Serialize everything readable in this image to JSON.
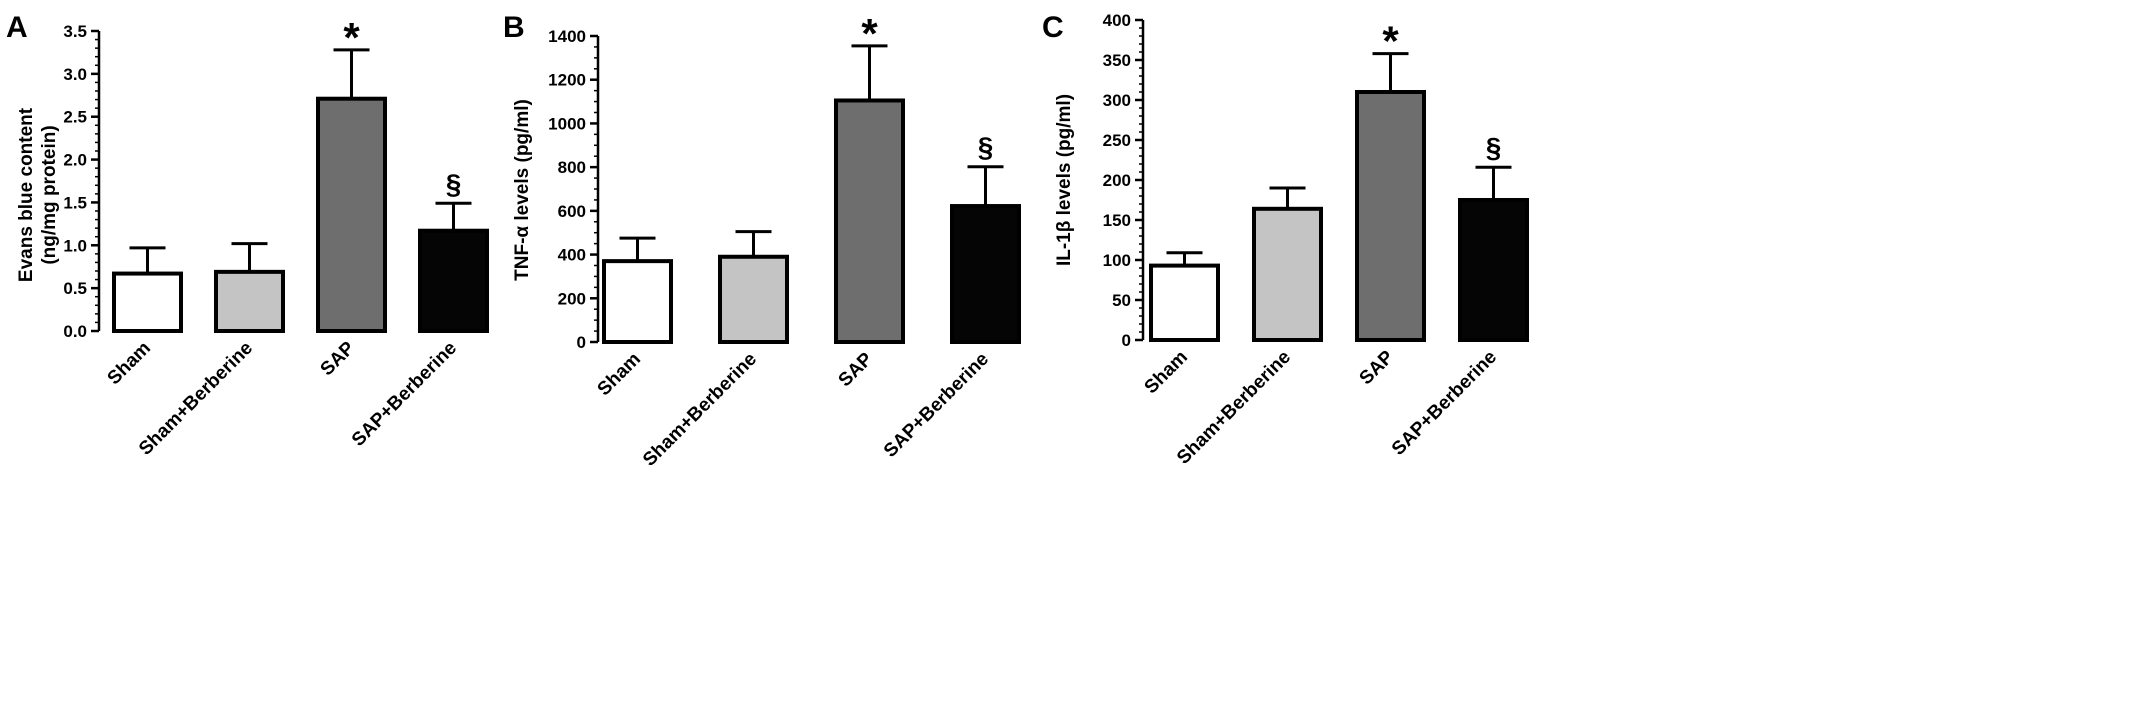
{
  "colors": {
    "Sham": "#ffffff",
    "Sham+Berberine": "#c4c4c4",
    "SAP": "#6e6e6e",
    "SAP+Berberine": "#050505",
    "outline": "#000000"
  },
  "chart_data": [
    {
      "type": "bar",
      "panel": "A",
      "categories": [
        "Sham",
        "Sham+Berberine",
        "SAP",
        "SAP+Berberine"
      ],
      "values": [
        0.67,
        0.69,
        2.71,
        1.17
      ],
      "error": [
        0.3,
        0.33,
        0.57,
        0.32
      ],
      "annotations": [
        "",
        "",
        "*",
        "§"
      ],
      "ylabel": [
        "Evans blue content",
        "(ng/mg protein)"
      ],
      "ylim": [
        0,
        3.5
      ],
      "yticks": [
        "0.0",
        "0.5",
        "1.0",
        "1.5",
        "2.0",
        "2.5",
        "3.0",
        "3.5"
      ],
      "grid": false
    },
    {
      "type": "bar",
      "panel": "B",
      "categories": [
        "Sham",
        "Sham+Berberine",
        "SAP",
        "SAP+Berberine"
      ],
      "values": [
        370,
        390,
        1105,
        622
      ],
      "error": [
        105,
        115,
        250,
        180
      ],
      "annotations": [
        "",
        "",
        "*",
        "§"
      ],
      "ylabel": [
        "TNF-α levels (pg/ml)"
      ],
      "ylim": [
        0,
        1400
      ],
      "yticks": [
        "0",
        "200",
        "400",
        "600",
        "800",
        "1000",
        "1200",
        "1400"
      ],
      "grid": false
    },
    {
      "type": "bar",
      "panel": "C",
      "categories": [
        "Sham",
        "Sham+Berberine",
        "SAP",
        "SAP+Berberine"
      ],
      "values": [
        93,
        164,
        310,
        175
      ],
      "error": [
        16,
        26,
        48,
        41
      ],
      "annotations": [
        "",
        "",
        "*",
        "§"
      ],
      "ylabel": [
        "IL-1β levels (pg/ml)"
      ],
      "ylim": [
        0,
        400
      ],
      "yticks": [
        "0",
        "50",
        "100",
        "150",
        "200",
        "250",
        "300",
        "350",
        "400"
      ],
      "grid": false
    }
  ]
}
